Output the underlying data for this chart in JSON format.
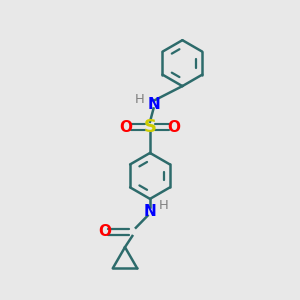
{
  "bg_color": "#e8e8e8",
  "bond_color": "#2d6b6b",
  "N_color": "#0000ff",
  "O_color": "#ff0000",
  "S_color": "#cccc00",
  "H_color": "#808080",
  "line_width": 1.8,
  "font_size": 11,
  "fig_size": [
    3.0,
    3.0
  ],
  "dpi": 100,
  "xlim": [
    0,
    10
  ],
  "ylim": [
    0,
    10
  ]
}
